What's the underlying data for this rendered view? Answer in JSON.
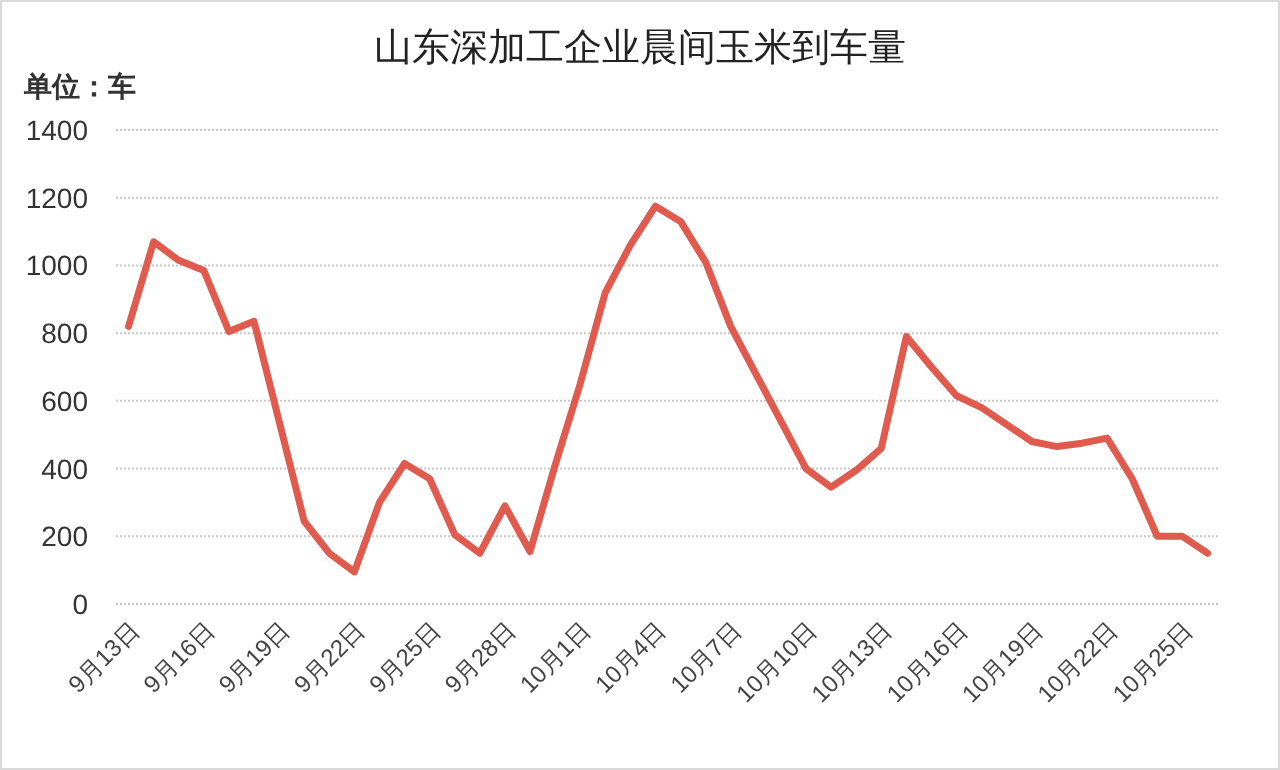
{
  "chart_data": {
    "type": "line",
    "title": "山东深加工企业晨间玉米到车量",
    "ylabel": "单位：车",
    "categories": [
      "9月13日",
      null,
      null,
      "9月16日",
      null,
      null,
      "9月19日",
      null,
      null,
      "9月22日",
      null,
      null,
      "9月25日",
      null,
      null,
      "9月28日",
      null,
      null,
      "10月1日",
      null,
      null,
      "10月4日",
      null,
      null,
      "10月7日",
      null,
      null,
      "10月10日",
      null,
      null,
      "10月13日",
      null,
      null,
      "10月16日",
      null,
      null,
      "10月19日",
      null,
      null,
      "10月22日",
      null,
      null,
      "10月25日",
      null
    ],
    "series": [
      {
        "color": "#e05a4e",
        "values": [
          820,
          1070,
          1015,
          985,
          805,
          835,
          540,
          245,
          150,
          95,
          300,
          415,
          370,
          205,
          150,
          290,
          155,
          410,
          650,
          920,
          1060,
          1175,
          1130,
          1010,
          820,
          680,
          540,
          400,
          345,
          395,
          460,
          790,
          700,
          615,
          580,
          530,
          480,
          465,
          475,
          490,
          370,
          200,
          200,
          150
        ]
      }
    ],
    "ylim": [
      0,
      1400
    ],
    "yticks": [
      0,
      200,
      400,
      600,
      800,
      1000,
      1200,
      1400
    ],
    "grid": "y"
  }
}
